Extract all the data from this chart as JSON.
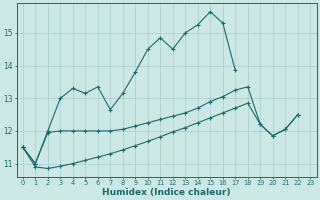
{
  "title": "",
  "xlabel": "Humidex (Indice chaleur)",
  "ylabel": "",
  "bg_color": "#cce8e5",
  "line_color": "#1a6b6b",
  "grid_color": "#aacccc",
  "x_values": [
    0,
    1,
    2,
    3,
    4,
    5,
    6,
    7,
    8,
    9,
    10,
    11,
    12,
    13,
    14,
    15,
    16,
    17,
    18,
    19,
    20,
    21,
    22,
    23
  ],
  "line1": [
    11.5,
    11.0,
    12.0,
    13.0,
    13.3,
    13.15,
    13.35,
    12.65,
    13.15,
    13.8,
    14.5,
    14.85,
    14.5,
    15.0,
    15.25,
    15.65,
    15.3,
    13.85,
    null,
    null,
    null,
    null,
    null,
    null
  ],
  "line2": [
    11.5,
    11.0,
    11.95,
    12.0,
    12.0,
    12.0,
    12.0,
    12.0,
    12.05,
    12.15,
    12.25,
    12.35,
    12.45,
    12.55,
    12.7,
    12.9,
    13.05,
    13.25,
    13.35,
    12.2,
    11.85,
    12.05,
    12.5,
    null
  ],
  "line3": [
    11.5,
    10.9,
    10.85,
    10.92,
    11.0,
    11.1,
    11.2,
    11.3,
    11.42,
    11.55,
    11.68,
    11.82,
    11.97,
    12.1,
    12.25,
    12.4,
    12.55,
    12.7,
    12.85,
    12.2,
    11.85,
    12.05,
    12.5,
    null
  ],
  "yticks": [
    11,
    12,
    13,
    14,
    15
  ],
  "ylim": [
    10.6,
    15.9
  ],
  "xlim": [
    -0.5,
    23.5
  ]
}
